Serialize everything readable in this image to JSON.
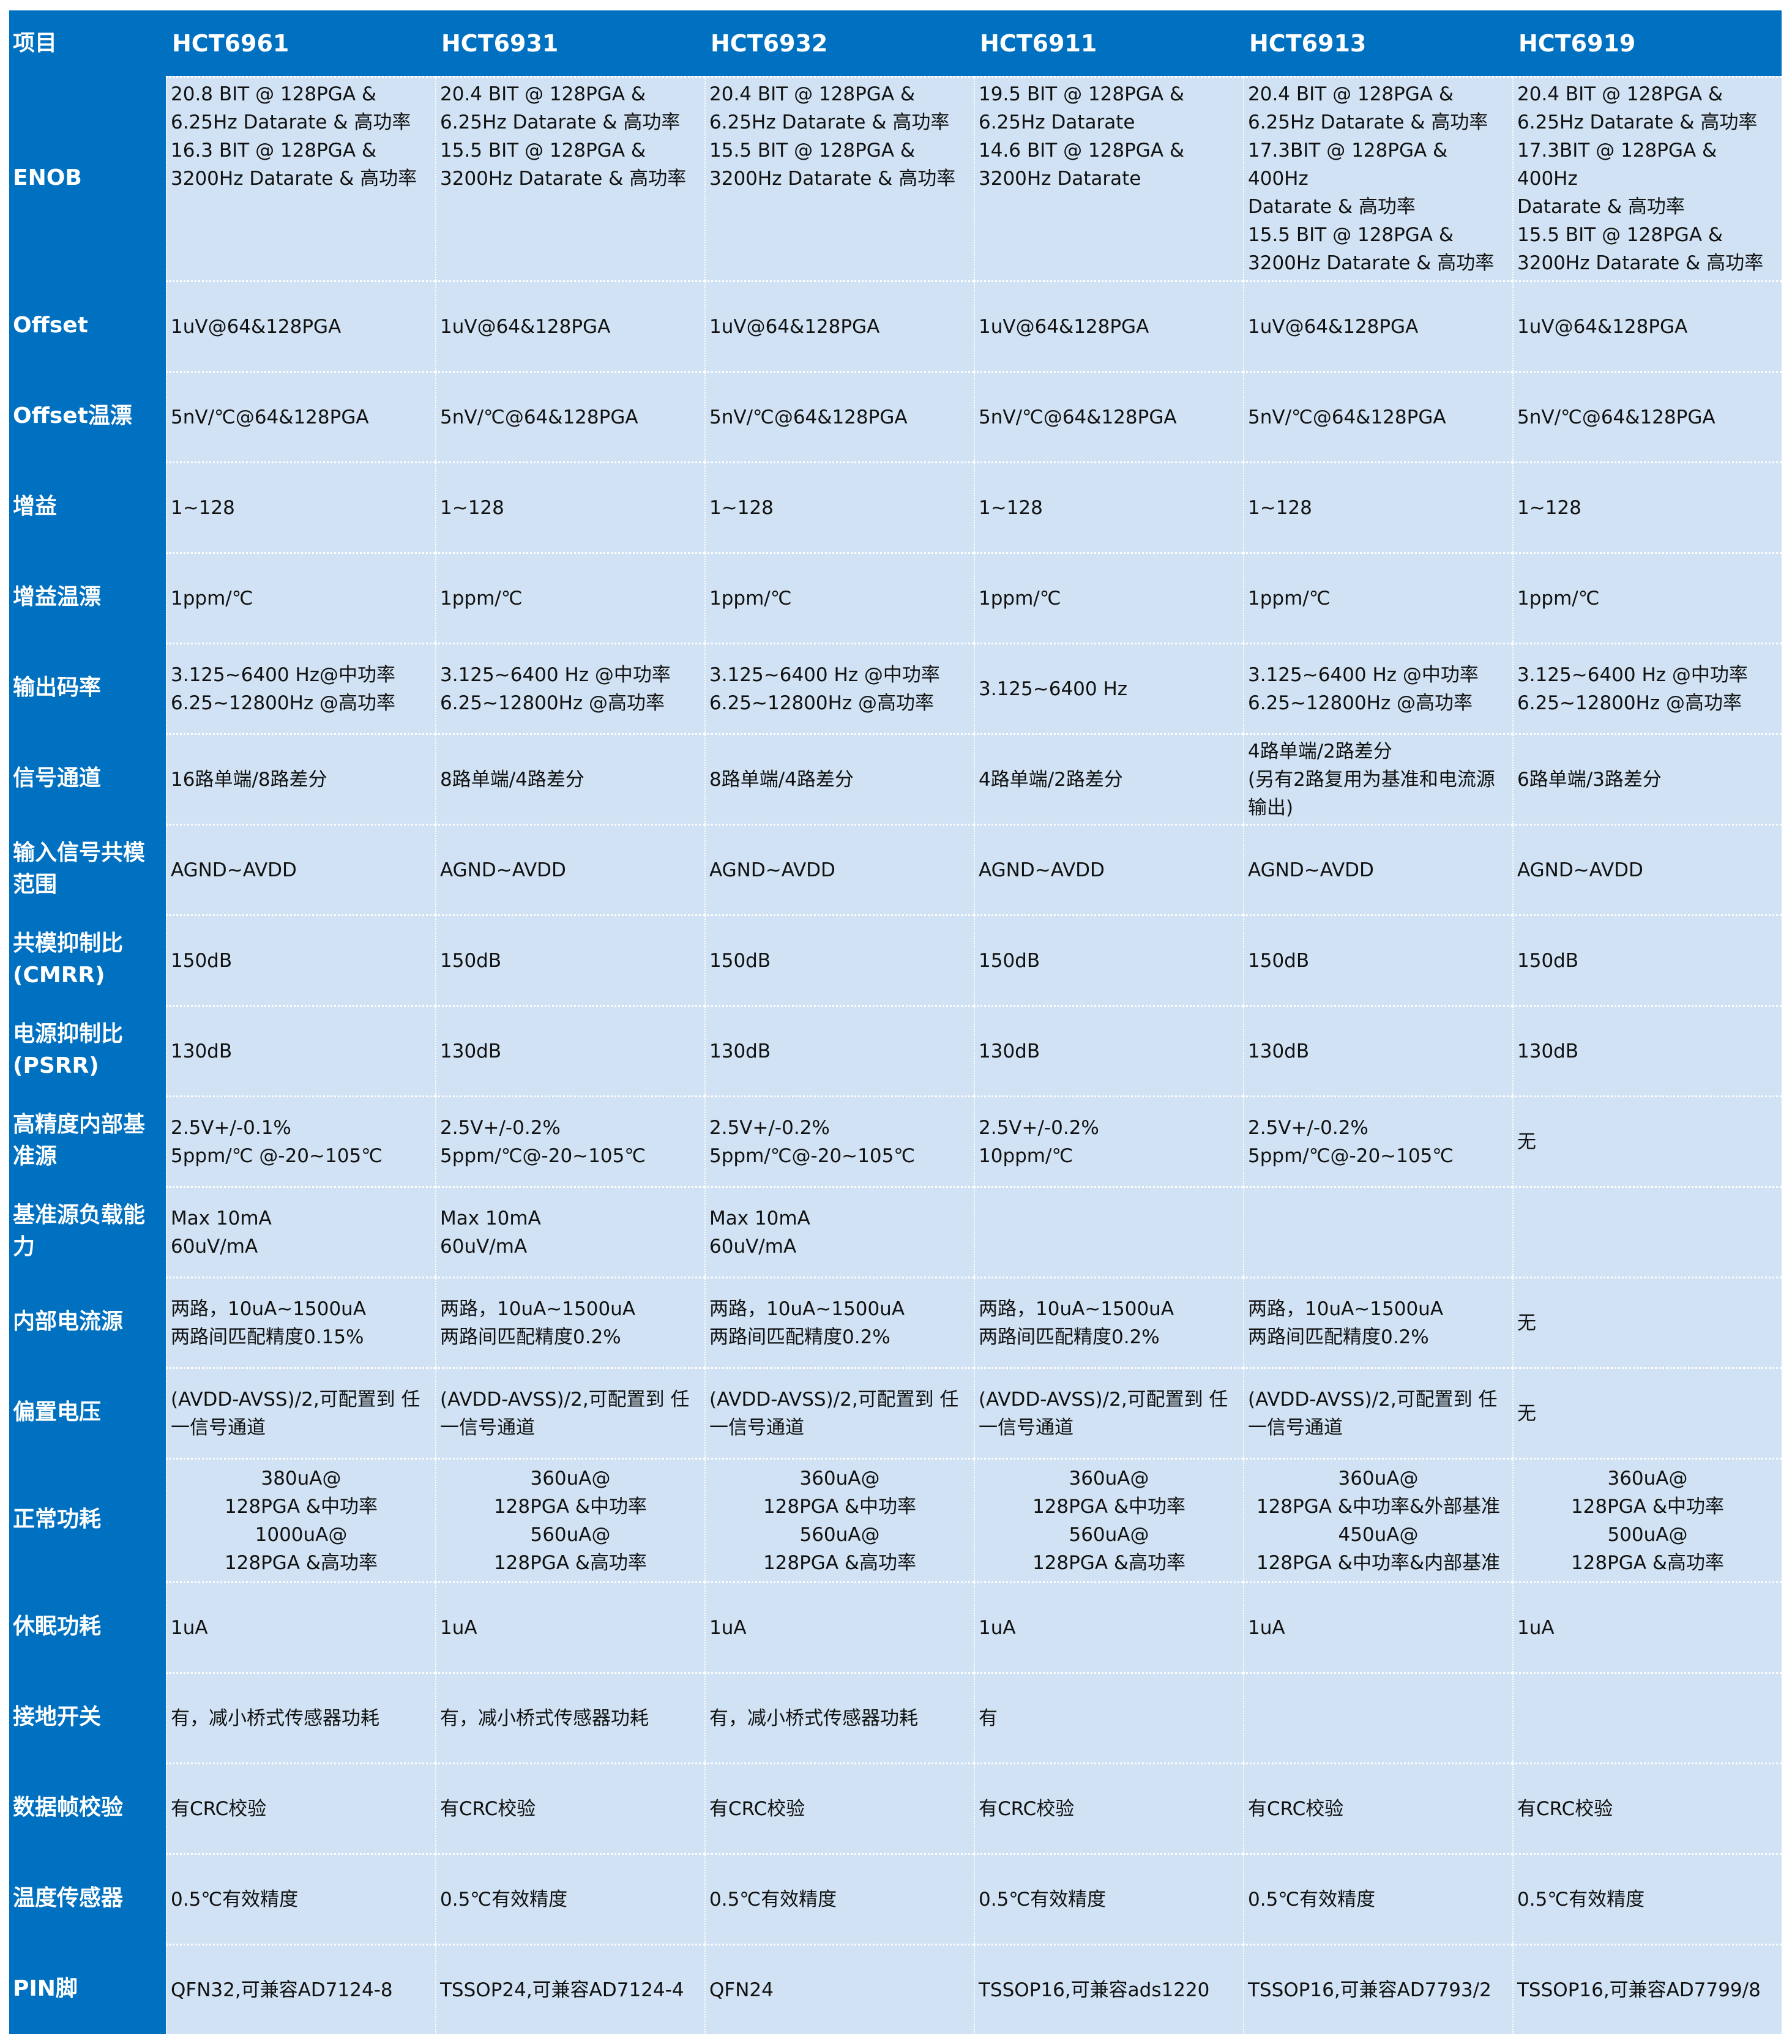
{
  "header": {
    "item_label": "项目",
    "models": [
      "HCT6961",
      "HCT6931",
      "HCT6932",
      "HCT6911",
      "HCT6913",
      "HCT6919"
    ]
  },
  "colors": {
    "header_bg": "#0070C0",
    "cell_bg": "#D0E2F3"
  },
  "rows": [
    {
      "label": "ENOB",
      "cells": [
        "20.8 BIT @ 128PGA &\n6.25Hz Datarate & 高功率\n16.3 BIT @ 128PGA &\n3200Hz Datarate & 高功率",
        "20.4 BIT @ 128PGA &\n6.25Hz Datarate & 高功率\n15.5 BIT @ 128PGA &\n3200Hz Datarate & 高功率",
        "20.4 BIT @ 128PGA &\n6.25Hz Datarate & 高功率\n15.5 BIT @ 128PGA &\n3200Hz Datarate & 高功率",
        "19.5 BIT @ 128PGA &\n6.25Hz Datarate\n14.6 BIT @ 128PGA &\n3200Hz Datarate",
        "20.4 BIT @ 128PGA &\n6.25Hz Datarate & 高功率\n17.3BIT @ 128PGA & 400Hz\nDatarate & 高功率\n15.5 BIT @ 128PGA &\n3200Hz Datarate & 高功率",
        "20.4 BIT @ 128PGA &\n6.25Hz Datarate & 高功率\n17.3BIT @ 128PGA & 400Hz\nDatarate & 高功率\n15.5 BIT @ 128PGA &\n3200Hz Datarate & 高功率"
      ]
    },
    {
      "label": "Offset",
      "cells": [
        "1uV@64&128PGA",
        "1uV@64&128PGA",
        "1uV@64&128PGA",
        "1uV@64&128PGA",
        "1uV@64&128PGA",
        "1uV@64&128PGA"
      ]
    },
    {
      "label": "Offset温漂",
      "cells": [
        "5nV/℃@64&128PGA",
        "5nV/℃@64&128PGA",
        "5nV/℃@64&128PGA",
        "5nV/℃@64&128PGA",
        "5nV/℃@64&128PGA",
        "5nV/℃@64&128PGA"
      ]
    },
    {
      "label": "增益",
      "cells": [
        "1~128",
        "1~128",
        "1~128",
        "1~128",
        "1~128",
        "1~128"
      ]
    },
    {
      "label": "增益温漂",
      "cells": [
        "1ppm/℃",
        "1ppm/℃",
        "1ppm/℃",
        "1ppm/℃",
        "1ppm/℃",
        "1ppm/℃"
      ]
    },
    {
      "label": "输出码率",
      "cells": [
        "3.125~6400 Hz@中功率\n6.25~12800Hz @高功率",
        "3.125~6400 Hz @中功率\n6.25~12800Hz @高功率",
        "3.125~6400 Hz @中功率\n6.25~12800Hz @高功率",
        "3.125~6400 Hz",
        "3.125~6400 Hz @中功率\n6.25~12800Hz @高功率",
        "3.125~6400 Hz @中功率\n6.25~12800Hz @高功率"
      ]
    },
    {
      "label": "信号通道",
      "cells": [
        "16路单端/8路差分",
        "8路单端/4路差分",
        "8路单端/4路差分",
        "4路单端/2路差分",
        "4路单端/2路差分\n(另有2路复用为基准和电流源输出)",
        "6路单端/3路差分"
      ]
    },
    {
      "label": "输入信号共模范围",
      "cells": [
        "AGND~AVDD",
        "AGND~AVDD",
        "AGND~AVDD",
        "AGND~AVDD",
        "AGND~AVDD",
        "AGND~AVDD"
      ]
    },
    {
      "label": "共模抑制比(CMRR)",
      "cells": [
        "150dB",
        "150dB",
        "150dB",
        "150dB",
        "150dB",
        "150dB"
      ]
    },
    {
      "label": "电源抑制比(PSRR)",
      "cells": [
        "130dB",
        "130dB",
        "130dB",
        "130dB",
        "130dB",
        "130dB"
      ]
    },
    {
      "label": "高精度内部基准源",
      "cells": [
        "2.5V+/-0.1%\n5ppm/℃ @-20~105℃",
        "2.5V+/-0.2%\n5ppm/℃@-20~105℃",
        "2.5V+/-0.2%\n5ppm/℃@-20~105℃",
        "2.5V+/-0.2%\n10ppm/℃",
        "2.5V+/-0.2%\n5ppm/℃@-20~105℃",
        "无"
      ]
    },
    {
      "label": "基准源负载能力",
      "cells": [
        "Max 10mA\n60uV/mA",
        "Max 10mA\n60uV/mA",
        "Max 10mA\n60uV/mA",
        "",
        "",
        ""
      ]
    },
    {
      "label": "内部电流源",
      "cells": [
        "两路，10uA~1500uA\n两路间匹配精度0.15%",
        "两路，10uA~1500uA\n两路间匹配精度0.2%",
        "两路，10uA~1500uA\n两路间匹配精度0.2%",
        "两路，10uA~1500uA\n两路间匹配精度0.2%",
        "两路，10uA~1500uA\n两路间匹配精度0.2%",
        "无"
      ]
    },
    {
      "label": "偏置电压",
      "cells": [
        "(AVDD-AVSS)/2,可配置到 任一信号通道",
        "(AVDD-AVSS)/2,可配置到 任一信号通道",
        "(AVDD-AVSS)/2,可配置到 任一信号通道",
        "(AVDD-AVSS)/2,可配置到 任一信号通道",
        "(AVDD-AVSS)/2,可配置到 任一信号通道",
        "无"
      ]
    },
    {
      "label": "正常功耗",
      "cells": [
        "380uA@\n128PGA &中功率\n1000uA@\n128PGA &高功率",
        "360uA@\n128PGA &中功率\n560uA@\n128PGA &高功率",
        "360uA@\n128PGA &中功率\n560uA@\n128PGA &高功率",
        "360uA@\n128PGA &中功率\n560uA@\n128PGA &高功率",
        "360uA@\n128PGA &中功率&外部基准\n450uA@\n128PGA &中功率&内部基准",
        "360uA@\n128PGA &中功率\n500uA@\n128PGA &高功率"
      ]
    },
    {
      "label": "休眠功耗",
      "cells": [
        "1uA",
        "1uA",
        "1uA",
        "1uA",
        "1uA",
        "1uA"
      ]
    },
    {
      "label": "接地开关",
      "cells": [
        "有，减小桥式传感器功耗",
        "有，减小桥式传感器功耗",
        "有，减小桥式传感器功耗",
        "有",
        "",
        ""
      ]
    },
    {
      "label": "数据帧校验",
      "cells": [
        "有CRC校验",
        "有CRC校验",
        "有CRC校验",
        "有CRC校验",
        "有CRC校验",
        "有CRC校验"
      ]
    },
    {
      "label": "温度传感器",
      "cells": [
        "0.5℃有效精度",
        "0.5℃有效精度",
        "0.5℃有效精度",
        "0.5℃有效精度",
        "0.5℃有效精度",
        "0.5℃有效精度"
      ]
    },
    {
      "label": "PIN脚",
      "cells": [
        "QFN32,可兼容AD7124-8",
        "TSSOP24,可兼容AD7124-4",
        "QFN24",
        "TSSOP16,可兼容ads1220",
        "TSSOP16,可兼容AD7793/2",
        "TSSOP16,可兼容AD7799/8"
      ]
    }
  ]
}
